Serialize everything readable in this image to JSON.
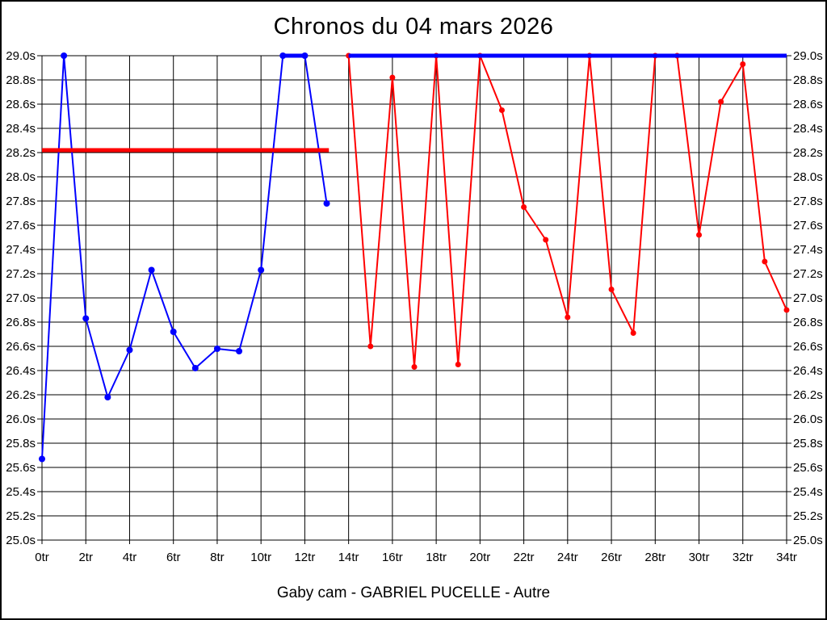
{
  "window": {
    "title": "Chronos du 04 mars 2026",
    "caption": "Gaby cam - GABRIEL PUCELLE - Autre"
  },
  "colors": {
    "background": "#ffffff",
    "grid": "#000000",
    "blue_series": "#0000ff",
    "red_series": "#ff0000"
  },
  "chart_data": {
    "type": "line",
    "title": "Chronos du 04 mars 2026",
    "caption": "Gaby cam - GABRIEL PUCELLE - Autre",
    "xlabel": "",
    "ylabel": "",
    "xlim": [
      0,
      34
    ],
    "ylim": [
      25.0,
      29.0
    ],
    "x_tick_step": 2,
    "y_tick_step": 0.2,
    "grid": true,
    "legend_position": "none",
    "y_axis_label_sides": [
      "left",
      "right"
    ],
    "x_tick_labels": [
      "0tr",
      "2tr",
      "4tr",
      "6tr",
      "8tr",
      "10tr",
      "12tr",
      "14tr",
      "16tr",
      "18tr",
      "20tr",
      "22tr",
      "24tr",
      "26tr",
      "28tr",
      "30tr",
      "32tr",
      "34tr"
    ],
    "y_tick_labels": [
      "25.0s",
      "25.2s",
      "25.4s",
      "25.6s",
      "25.8s",
      "26.0s",
      "26.2s",
      "26.4s",
      "26.6s",
      "26.8s",
      "27.0s",
      "27.2s",
      "27.4s",
      "27.6s",
      "27.8s",
      "28.0s",
      "28.2s",
      "28.4s",
      "28.6s",
      "28.8s",
      "29.0s"
    ],
    "series": [
      {
        "name": "chronos-bleus",
        "color": "#0000ff",
        "marker_radius": 4,
        "x": [
          0,
          1,
          2,
          3,
          4,
          5,
          6,
          7,
          8,
          9,
          10,
          11,
          12,
          13
        ],
        "values": [
          25.67,
          29.0,
          26.83,
          26.18,
          26.57,
          27.23,
          26.72,
          26.42,
          26.58,
          26.56,
          27.23,
          29.0,
          29.0,
          27.78
        ]
      },
      {
        "name": "chronos-rouges",
        "color": "#ff0000",
        "marker_radius": 3.5,
        "x": [
          14,
          15,
          16,
          17,
          18,
          19,
          20,
          21,
          22,
          23,
          24,
          25,
          26,
          27,
          28,
          29,
          30,
          31,
          32,
          33,
          34
        ],
        "values": [
          29.0,
          26.6,
          28.82,
          26.43,
          29.0,
          26.45,
          29.0,
          28.55,
          27.75,
          27.48,
          26.84,
          29.0,
          27.07,
          26.71,
          29.0,
          29.0,
          27.52,
          28.62,
          28.93,
          27.3,
          26.9
        ]
      }
    ],
    "reference_lines": [
      {
        "name": "ligne-rouge-28-22",
        "color": "#ff0000",
        "value": 28.22,
        "x_start": 0,
        "x_end": 13.1,
        "thickness": 5
      },
      {
        "name": "segment-bleu-29-0",
        "color": "#0000ff",
        "value": 29.0,
        "x_start": 11,
        "x_end": 12,
        "thickness": 5
      },
      {
        "name": "ligne-bleue-29-0",
        "color": "#0000ff",
        "value": 29.0,
        "x_start": 14,
        "x_end": 34,
        "thickness": 5
      }
    ]
  }
}
